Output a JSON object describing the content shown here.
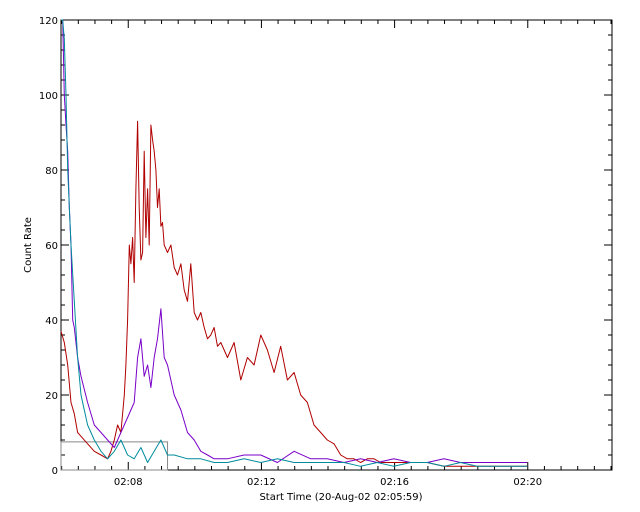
{
  "chart_data": {
    "type": "line",
    "xlabel": "Start Time (20-Aug-02 02:05:59)",
    "ylabel": "Count Rate",
    "xlim_minutes": [
      0,
      16.55
    ],
    "ylim": [
      0,
      120
    ],
    "x_ticks": [
      {
        "t": 2.02,
        "label": "02:08"
      },
      {
        "t": 6.02,
        "label": "02:12"
      },
      {
        "t": 10.02,
        "label": "02:16"
      },
      {
        "t": 14.02,
        "label": "02:20"
      }
    ],
    "y_ticks": [
      0,
      20,
      40,
      60,
      80,
      100,
      120
    ],
    "grid": false,
    "legend": "none",
    "background_box": {
      "t_start": 0.0,
      "t_end": 3.2,
      "value": 7.5
    },
    "series": [
      {
        "color": "#b00000",
        "x": [
          0.0,
          0.1,
          0.2,
          0.3,
          0.4,
          0.5,
          0.6,
          0.8,
          1.0,
          1.2,
          1.4,
          1.5,
          1.6,
          1.7,
          1.8,
          1.85,
          1.9,
          1.95,
          2.0,
          2.05,
          2.1,
          2.15,
          2.2,
          2.25,
          2.3,
          2.35,
          2.4,
          2.45,
          2.5,
          2.55,
          2.6,
          2.65,
          2.7,
          2.75,
          2.8,
          2.85,
          2.9,
          2.95,
          3.0,
          3.05,
          3.1,
          3.2,
          3.3,
          3.4,
          3.5,
          3.6,
          3.7,
          3.8,
          3.9,
          4.0,
          4.1,
          4.2,
          4.3,
          4.4,
          4.5,
          4.6,
          4.7,
          4.8,
          5.0,
          5.2,
          5.4,
          5.6,
          5.8,
          6.0,
          6.2,
          6.4,
          6.6,
          6.8,
          7.0,
          7.2,
          7.4,
          7.6,
          7.8,
          8.0,
          8.2,
          8.4,
          8.6,
          8.8,
          9.0,
          9.2,
          9.4,
          9.6,
          9.8,
          10.0,
          10.5,
          11.0,
          11.5,
          12.0,
          12.5,
          13.0,
          13.5,
          14.0
        ],
        "values": [
          37,
          34,
          28,
          18,
          15,
          10,
          9,
          7,
          5,
          4,
          3,
          5,
          8,
          12,
          10,
          15,
          20,
          28,
          40,
          60,
          55,
          62,
          50,
          75,
          93,
          70,
          56,
          58,
          85,
          62,
          75,
          60,
          92,
          88,
          85,
          80,
          70,
          75,
          65,
          66,
          60,
          58,
          60,
          54,
          52,
          55,
          48,
          45,
          55,
          42,
          40,
          42,
          38,
          35,
          36,
          38,
          33,
          34,
          30,
          34,
          24,
          30,
          28,
          36,
          32,
          26,
          33,
          24,
          26,
          20,
          18,
          12,
          10,
          8,
          7,
          4,
          3,
          3,
          2,
          3,
          3,
          2,
          2,
          2,
          2,
          2,
          1,
          1,
          1,
          1,
          1,
          1
        ]
      },
      {
        "color": "#7a00c8",
        "x": [
          0.0,
          0.05,
          0.1,
          0.15,
          0.2,
          0.25,
          0.3,
          0.35,
          0.4,
          0.5,
          0.6,
          0.8,
          1.0,
          1.2,
          1.4,
          1.6,
          1.8,
          2.0,
          2.2,
          2.3,
          2.4,
          2.5,
          2.6,
          2.7,
          2.8,
          2.9,
          3.0,
          3.1,
          3.2,
          3.4,
          3.6,
          3.8,
          4.0,
          4.2,
          4.4,
          4.6,
          5.0,
          5.5,
          6.0,
          6.5,
          7.0,
          7.5,
          8.0,
          8.5,
          9.0,
          9.5,
          10.0,
          10.5,
          11.0,
          11.5,
          12.0,
          12.5,
          13.0,
          13.5,
          14.0
        ],
        "values": [
          140,
          120,
          100,
          92,
          85,
          70,
          60,
          40,
          38,
          30,
          25,
          18,
          12,
          10,
          8,
          6,
          10,
          14,
          18,
          30,
          35,
          25,
          28,
          22,
          30,
          35,
          43,
          30,
          28,
          20,
          16,
          10,
          8,
          5,
          4,
          3,
          3,
          4,
          4,
          2,
          5,
          3,
          3,
          2,
          3,
          2,
          3,
          2,
          2,
          3,
          2,
          2,
          2,
          2,
          2
        ]
      },
      {
        "color": "#008c9c",
        "x": [
          0.0,
          0.05,
          0.1,
          0.15,
          0.2,
          0.3,
          0.4,
          0.5,
          0.6,
          0.8,
          1.0,
          1.2,
          1.4,
          1.6,
          1.8,
          2.0,
          2.2,
          2.4,
          2.6,
          2.8,
          3.0,
          3.2,
          3.4,
          3.8,
          4.2,
          4.6,
          5.0,
          5.5,
          6.0,
          6.5,
          7.0,
          7.5,
          8.0,
          8.5,
          9.0,
          9.5,
          10.0,
          10.5,
          11.0,
          11.5,
          12.0,
          12.5,
          13.0,
          13.5,
          14.0
        ],
        "values": [
          125,
          120,
          115,
          100,
          80,
          60,
          45,
          30,
          20,
          12,
          8,
          5,
          3,
          5,
          8,
          4,
          3,
          6,
          2,
          5,
          8,
          4,
          4,
          3,
          3,
          2,
          2,
          3,
          2,
          3,
          2,
          2,
          2,
          2,
          1,
          2,
          1,
          2,
          2,
          1,
          2,
          1,
          1,
          1,
          1
        ]
      }
    ]
  }
}
